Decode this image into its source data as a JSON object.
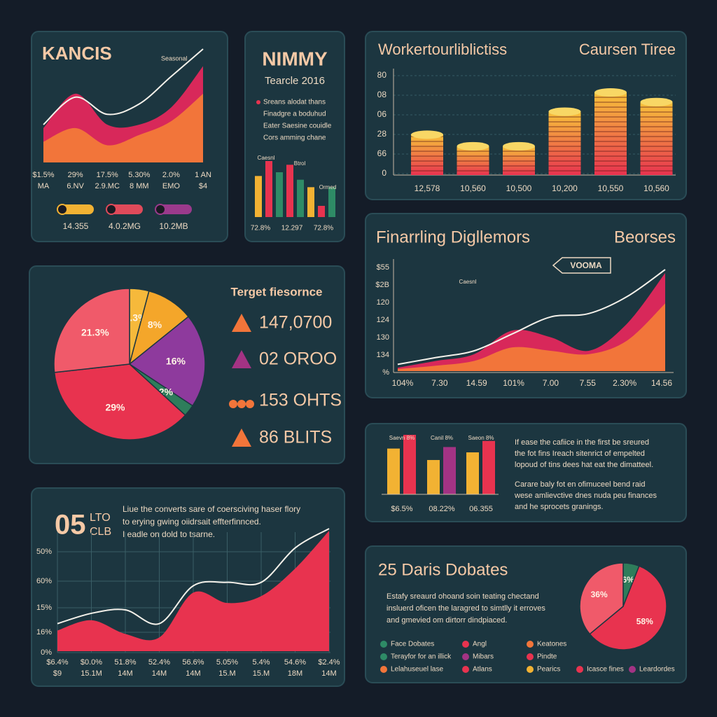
{
  "chart_data": [
    {
      "type": "area",
      "title": "KANCIS",
      "annotation": "Seasonal",
      "categories": [
        "$1.5%",
        "29%",
        "17.5%",
        "5.30%",
        "2.0%",
        "1 AN"
      ],
      "sublabels": [
        "MA",
        "6.NV",
        "2.9.MC",
        "8 MM",
        "EMO",
        "$4"
      ],
      "series": [
        {
          "style": "area",
          "color": "#d8285a",
          "values": [
            50,
            100,
            55,
            55,
            80,
            140
          ]
        },
        {
          "style": "area",
          "color": "#f2753a",
          "values": [
            30,
            50,
            25,
            40,
            60,
            100
          ]
        },
        {
          "style": "line",
          "color": "#f4f1ea",
          "values": [
            55,
            95,
            70,
            85,
            125,
            165
          ]
        }
      ],
      "pills": [
        {
          "label": "14.355",
          "color": "#f2b233"
        },
        {
          "label": "4.0.2MG",
          "color": "#e04a5a"
        },
        {
          "label": "10.2MB",
          "color": "#9b3a8c"
        }
      ]
    },
    {
      "type": "bar",
      "title": "NIMMY",
      "subtitle": "Tearcle 2016",
      "notes": [
        "Sreans alodat thans",
        "Finadgre a boduhud",
        "Eater Saesine couidle",
        "Cors amming chane"
      ],
      "annotations": [
        "Caesnl",
        "Btrol",
        "Ormed"
      ],
      "categories": [
        "72.8%",
        null,
        null,
        "12.297",
        null,
        null,
        "72.8%",
        null
      ],
      "values": [
        55,
        75,
        60,
        70,
        50,
        40,
        15,
        40
      ],
      "colors": [
        "#f2b233",
        "#e8334f",
        "#2e8b66",
        "#e8334f",
        "#2e8b66",
        "#f2b233",
        "#e8334f",
        "#2e8b66"
      ]
    },
    {
      "type": "bar",
      "title": "Workertourliblictiss",
      "subtitle": "Caursen Tiree",
      "axis_labels": [
        "80",
        "08",
        "06",
        "28",
        "66",
        "0"
      ],
      "categories": [
        "12,578",
        "10,560",
        "10,500",
        "10,200",
        "10,550",
        "10,560"
      ],
      "values": [
        21,
        15,
        15,
        33,
        43,
        38
      ],
      "colors": [
        "#f7c23a",
        "#e8334f"
      ]
    },
    {
      "type": "pie",
      "title": "Terget fiesornce",
      "values": [
        3.3,
        8,
        16,
        2,
        29,
        21.3
      ],
      "value_labels": [
        "3.3%",
        "8%",
        "16%",
        "2%",
        "29%",
        "21.3%"
      ],
      "colors": [
        "#f6b93b",
        "#f4a62a",
        "#8e3a9d",
        "#2e7d5b",
        "#e8334f",
        "#f05a6a"
      ],
      "stats": [
        "147,0700",
        "02 OROO",
        "153 OHTS",
        "86 BLITS"
      ]
    },
    {
      "type": "area",
      "title": "Finarrling Digllemors",
      "subtitle": "Beorses",
      "callout": "VOOMA",
      "annotation": "Caesnl",
      "axis_labels": [
        "$55",
        "$2B",
        "120",
        "124",
        "130",
        "134",
        "%"
      ],
      "categories": [
        "104%",
        "7.30",
        "14.59",
        "101%",
        "7.00",
        "7.55",
        "2.30%",
        "14.56"
      ],
      "series": [
        {
          "style": "area",
          "color": "#d8285a",
          "values": [
            5,
            15,
            25,
            60,
            50,
            30,
            70,
            145
          ]
        },
        {
          "style": "area",
          "color": "#f2753a",
          "values": [
            3,
            8,
            15,
            35,
            30,
            25,
            45,
            100
          ]
        },
        {
          "style": "line",
          "color": "#f4f1ea",
          "values": [
            10,
            20,
            30,
            55,
            80,
            85,
            110,
            150
          ]
        }
      ]
    },
    {
      "type": "bar",
      "annotations": [
        "Saevn 8%",
        "Canil 8%",
        "Saeon 8%"
      ],
      "categories": [
        "$6.5%",
        "08.22%",
        "06.355"
      ],
      "series": [
        {
          "color": "#f2b233",
          "values": [
            60,
            45,
            55
          ]
        },
        {
          "colors": [
            "#e8334f",
            "#a33384",
            "#e8334f"
          ],
          "values": [
            78,
            62,
            70
          ]
        }
      ],
      "paragraphs": [
        [
          "If ease the cafiice in the first be sreured",
          "the fot fins Ireach sitenrict of empelted",
          "lopoud of tins dees hat eat the dimatteel."
        ],
        [
          "Carare baly fot en ofimuceel bend raid",
          "wese amlievctive dnes nuda peu finances",
          "and he sprocets granings."
        ]
      ]
    },
    {
      "type": "area",
      "title": "05",
      "subtitle": [
        "LTO",
        "CLB"
      ],
      "notes": [
        "Liue the converts sare of coersciving haser flory",
        "to erying gwing oiidrsait effterfinnced.",
        "I eadle on dold to tsarne."
      ],
      "axis_labels": [
        "50%",
        "60%",
        "15%",
        "16%",
        "0%"
      ],
      "categories": [
        "$6.4%",
        "$0.0%",
        "51.8%",
        "52.4%",
        "56.6%",
        "5.05%",
        "5.4%",
        "54.6%",
        "$2.4%"
      ],
      "sublabels": [
        "$9",
        "15.1M",
        "14M",
        "14M",
        "14M",
        "15.M",
        "15.M",
        "18M",
        "14M"
      ],
      "series": [
        {
          "style": "area",
          "color": "#e8334f",
          "values": [
            30,
            45,
            25,
            20,
            85,
            70,
            80,
            120,
            175
          ]
        },
        {
          "style": "line",
          "color": "#f4f1ea",
          "values": [
            40,
            55,
            60,
            40,
            95,
            100,
            100,
            150,
            178
          ]
        }
      ]
    },
    {
      "type": "pie",
      "title": "25 Daris Dobates",
      "notes": [
        "Estafy sreaurd ohoand soin teating chectand",
        "insluerd oficen the laragred to simtlly it erroves",
        "and gmevied om dirtorr dindpiaced."
      ],
      "values": [
        6,
        58,
        36
      ],
      "value_labels": [
        "6%",
        "58%",
        "36%"
      ],
      "colors": [
        "#2e7d5b",
        "#e8334f",
        "#f05a6a"
      ],
      "legend": [
        {
          "name": "Face Dobates",
          "color": "#2e8b66"
        },
        {
          "name": "Terayfor for an illick",
          "color": "#2e8b66"
        },
        {
          "name": "Lelahuseuel lase",
          "color": "#f2753a"
        },
        {
          "name": "Angl",
          "color": "#e8334f"
        },
        {
          "name": "Mibars",
          "color": "#a33384"
        },
        {
          "name": "Atlans",
          "color": "#e8334f"
        },
        {
          "name": "Keatones",
          "color": "#f2753a"
        },
        {
          "name": "Pindte",
          "color": "#e8334f"
        },
        {
          "name": "Pearics",
          "color": "#f2b233"
        },
        {
          "name": "Icasce fines",
          "color": "#e8334f"
        },
        {
          "name": "Leardordes",
          "color": "#a33384"
        }
      ]
    }
  ]
}
